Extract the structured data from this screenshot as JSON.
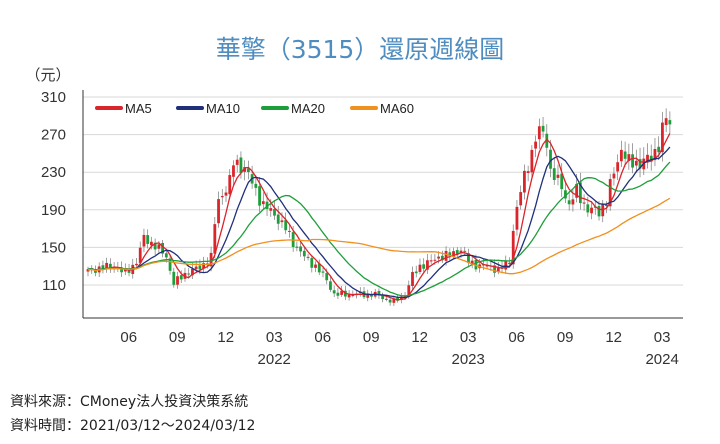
{
  "chart_data": {
    "type": "candlestick",
    "title": "華擎（3515）還原週線圖",
    "ylabel": "（元）",
    "ylim": [
      75,
      310
    ],
    "yticks": [
      "310",
      "270",
      "230",
      "190",
      "150",
      "110"
    ],
    "ytick_values": [
      310,
      270,
      230,
      190,
      150,
      110
    ],
    "xticks": [
      {
        "label": "06",
        "week": 12
      },
      {
        "label": "09",
        "week": 25
      },
      {
        "label": "12",
        "week": 38
      },
      {
        "label": "03",
        "week": 51,
        "year": "2022"
      },
      {
        "label": "06",
        "week": 64
      },
      {
        "label": "09",
        "week": 77
      },
      {
        "label": "12",
        "week": 90
      },
      {
        "label": "03",
        "week": 103,
        "year": "2023"
      },
      {
        "label": "06",
        "week": 116
      },
      {
        "label": "09",
        "week": 129
      },
      {
        "label": "12",
        "week": 142
      },
      {
        "label": "03",
        "week": 155,
        "year": "2024"
      }
    ],
    "weeks": 157,
    "close_keypoints": [
      [
        0,
        125
      ],
      [
        3,
        128
      ],
      [
        7,
        130
      ],
      [
        10,
        122
      ],
      [
        13,
        135
      ],
      [
        15,
        160
      ],
      [
        18,
        152
      ],
      [
        21,
        140
      ],
      [
        23,
        112
      ],
      [
        25,
        118
      ],
      [
        27,
        125
      ],
      [
        30,
        128
      ],
      [
        33,
        140
      ],
      [
        34,
        175
      ],
      [
        35,
        200
      ],
      [
        38,
        220
      ],
      [
        39,
        240
      ],
      [
        42,
        235
      ],
      [
        45,
        210
      ],
      [
        47,
        195
      ],
      [
        50,
        185
      ],
      [
        53,
        170
      ],
      [
        55,
        155
      ],
      [
        58,
        140
      ],
      [
        61,
        130
      ],
      [
        64,
        115
      ],
      [
        66,
        100
      ],
      [
        72,
        100
      ],
      [
        77,
        100
      ],
      [
        80,
        95
      ],
      [
        82,
        92
      ],
      [
        85,
        100
      ],
      [
        87,
        120
      ],
      [
        89,
        130
      ],
      [
        92,
        135
      ],
      [
        94,
        140
      ],
      [
        97,
        142
      ],
      [
        100,
        148
      ],
      [
        102,
        135
      ],
      [
        105,
        130
      ],
      [
        108,
        130
      ],
      [
        110,
        125
      ],
      [
        113,
        135
      ],
      [
        114,
        170
      ],
      [
        116,
        210
      ],
      [
        118,
        240
      ],
      [
        121,
        275
      ],
      [
        123,
        265
      ],
      [
        124,
        230
      ],
      [
        127,
        215
      ],
      [
        129,
        195
      ],
      [
        131,
        210
      ],
      [
        134,
        190
      ],
      [
        137,
        188
      ],
      [
        139,
        200
      ],
      [
        141,
        230
      ],
      [
        143,
        255
      ],
      [
        145,
        240
      ],
      [
        148,
        240
      ],
      [
        151,
        245
      ],
      [
        153,
        260
      ],
      [
        155,
        288
      ],
      [
        156,
        280
      ]
    ],
    "series": [
      {
        "name": "MA5",
        "period": 5,
        "color": "#d9262c"
      },
      {
        "name": "MA10",
        "period": 10,
        "color": "#1f2f7a"
      },
      {
        "name": "MA20",
        "period": 20,
        "color": "#1e9e3a"
      },
      {
        "name": "MA60",
        "period": 60,
        "color": "#f0901e"
      }
    ],
    "up_color": "#d9262c",
    "down_color": "#1e9e3a"
  },
  "footer": {
    "source": "資料來源：CMoney法人投資決策系統",
    "period": "資料時間：2021/03/12～2024/03/12"
  }
}
